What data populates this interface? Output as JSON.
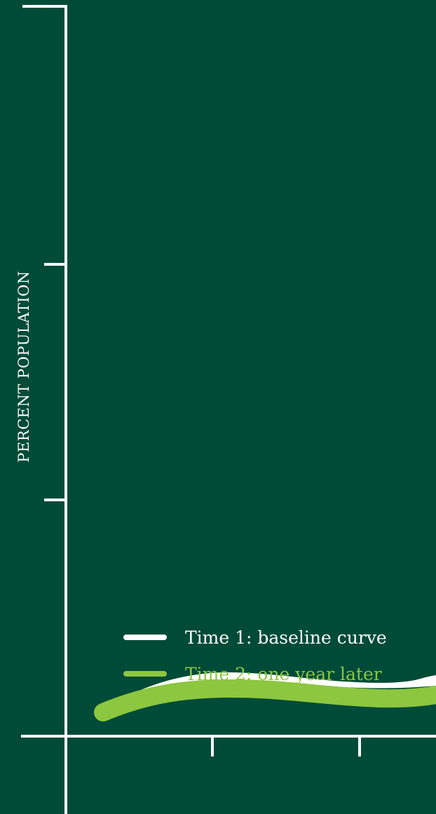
{
  "colors": {
    "background": "#004b37",
    "axis": "#ffffff",
    "series_1": "#ffffff",
    "series_2": "#8dc63f"
  },
  "chart_data": {
    "type": "line",
    "title": "",
    "xlabel": "",
    "ylabel": "PERCENT POPULATION",
    "grid": false,
    "legend": "left",
    "axes_labelled_with_values": false,
    "x_ticks": 3,
    "y_ticks": 3,
    "series": [
      {
        "name": "Time 1: baseline curve",
        "color": "#ffffff",
        "shape": "low wavy curve along the baseline, rising gently then flattening and dipping slightly before rising again at the right edge"
      },
      {
        "name": "Time 2: one year later",
        "color": "#8dc63f",
        "shape": "thick low curve just beneath the baseline curve, following the same gentle wave"
      }
    ]
  }
}
